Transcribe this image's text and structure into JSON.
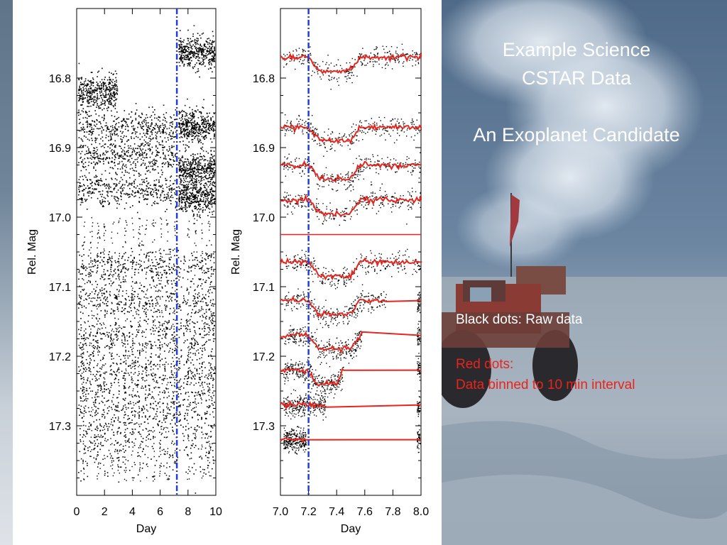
{
  "slide": {
    "title_line1": "Example Science",
    "title_line2": "CSTAR Data",
    "subtitle": "An Exoplanet Candidate",
    "note_black": "Black dots: Raw data",
    "note_red_line1": "Red dots:",
    "note_red_line2": "Data binned to 10 min interval"
  },
  "colors": {
    "raw_points": "#000000",
    "binned_points": "#e8241c",
    "marker_line": "#2040d0",
    "slide_text": "#ffffff",
    "red_text": "#e8241c"
  },
  "chart_data": [
    {
      "type": "scatter",
      "xlabel": "Day",
      "ylabel": "Rel. Mag",
      "xlim": [
        0,
        10
      ],
      "ylim": [
        17.4,
        16.7
      ],
      "y_inverted": true,
      "xticks": [
        "0",
        "2",
        "4",
        "6",
        "8",
        "10"
      ],
      "yticks": [
        "16.8",
        "16.9",
        "17.0",
        "17.1",
        "17.2",
        "17.3"
      ],
      "marker_day": 7.2,
      "marker_style": "dash-dot",
      "series": [
        {
          "center_mag": 16.82,
          "day_range": [
            0.1,
            2.9
          ],
          "spread": 0.012
        },
        {
          "center_mag": 16.87,
          "day_range": [
            0.1,
            7.1
          ],
          "spread": 0.012
        },
        {
          "center_mag": 16.91,
          "day_range": [
            0.1,
            7.1
          ],
          "spread": 0.012
        },
        {
          "center_mag": 16.96,
          "day_range": [
            0.1,
            7.1
          ],
          "spread": 0.012
        },
        {
          "center_mag": 16.76,
          "day_range": [
            7.3,
            9.9
          ],
          "spread": 0.012
        },
        {
          "center_mag": 16.87,
          "day_range": [
            7.3,
            9.9
          ],
          "spread": 0.012
        },
        {
          "center_mag": 16.93,
          "day_range": [
            7.3,
            9.9
          ],
          "spread": 0.012
        },
        {
          "center_mag": 16.97,
          "day_range": [
            7.3,
            9.9
          ],
          "spread": 0.012
        },
        {
          "center_mag": 17.07,
          "day_range": [
            0.1,
            9.9
          ],
          "spread": 0.013
        },
        {
          "center_mag": 17.12,
          "day_range": [
            0.1,
            9.9
          ],
          "spread": 0.014
        },
        {
          "center_mag": 17.17,
          "day_range": [
            0.1,
            9.9
          ],
          "spread": 0.016
        },
        {
          "center_mag": 17.22,
          "day_range": [
            0.1,
            9.9
          ],
          "spread": 0.018
        },
        {
          "center_mag": 17.27,
          "day_range": [
            0.1,
            9.9
          ],
          "spread": 0.022
        },
        {
          "center_mag": 17.32,
          "day_range": [
            0.1,
            9.9
          ],
          "spread": 0.03
        }
      ],
      "nightly_gaps_days": [
        0.5,
        1.0,
        1.5,
        2.0,
        2.5,
        3.0,
        3.5,
        4.0,
        4.5,
        5.0,
        5.5,
        6.0,
        6.5,
        7.0,
        8.0,
        8.5,
        9.0,
        9.5
      ]
    },
    {
      "type": "scatter",
      "xlabel": "Day",
      "ylabel": "Rel. Mag",
      "xlim": [
        7.0,
        8.0
      ],
      "ylim": [
        17.4,
        16.7
      ],
      "y_inverted": true,
      "xticks": [
        "7.0",
        "7.2",
        "7.4",
        "7.6",
        "7.8",
        "8.0"
      ],
      "yticks": [
        "16.8",
        "16.9",
        "17.0",
        "17.1",
        "17.2",
        "17.3"
      ],
      "marker_day": 7.2,
      "marker_style": "dash-dot",
      "divider_mag": 17.025,
      "series": [
        {
          "base_mag": 16.77,
          "transit_depth": 0.02,
          "transit_range": [
            7.2,
            7.57
          ],
          "end_day": 8.0
        },
        {
          "base_mag": 16.87,
          "transit_depth": 0.02,
          "transit_range": [
            7.2,
            7.57
          ],
          "end_day": 8.0
        },
        {
          "base_mag": 16.925,
          "transit_depth": 0.02,
          "transit_range": [
            7.2,
            7.57
          ],
          "end_day": 8.0
        },
        {
          "base_mag": 16.975,
          "transit_depth": 0.02,
          "transit_range": [
            7.2,
            7.57
          ],
          "end_day": 8.0
        },
        {
          "base_mag": 17.065,
          "transit_depth": 0.02,
          "transit_range": [
            7.2,
            7.57
          ],
          "end_day": 8.0
        },
        {
          "base_mag": 17.12,
          "transit_depth": 0.02,
          "transit_range": [
            7.2,
            7.57
          ],
          "end_day": 7.75
        },
        {
          "base_mag": 17.17,
          "transit_depth": 0.02,
          "transit_range": [
            7.2,
            7.57
          ],
          "end_day": 7.58
        },
        {
          "base_mag": 17.22,
          "transit_depth": 0.02,
          "transit_range": [
            7.2,
            7.45
          ],
          "end_day": 7.45
        },
        {
          "base_mag": 17.27,
          "transit_depth": 0.0,
          "transit_range": [
            7.2,
            7.3
          ],
          "end_day": 7.32
        },
        {
          "base_mag": 17.32,
          "transit_depth": 0.0,
          "transit_range": [
            7.2,
            7.2
          ],
          "end_day": 7.18
        }
      ]
    }
  ]
}
